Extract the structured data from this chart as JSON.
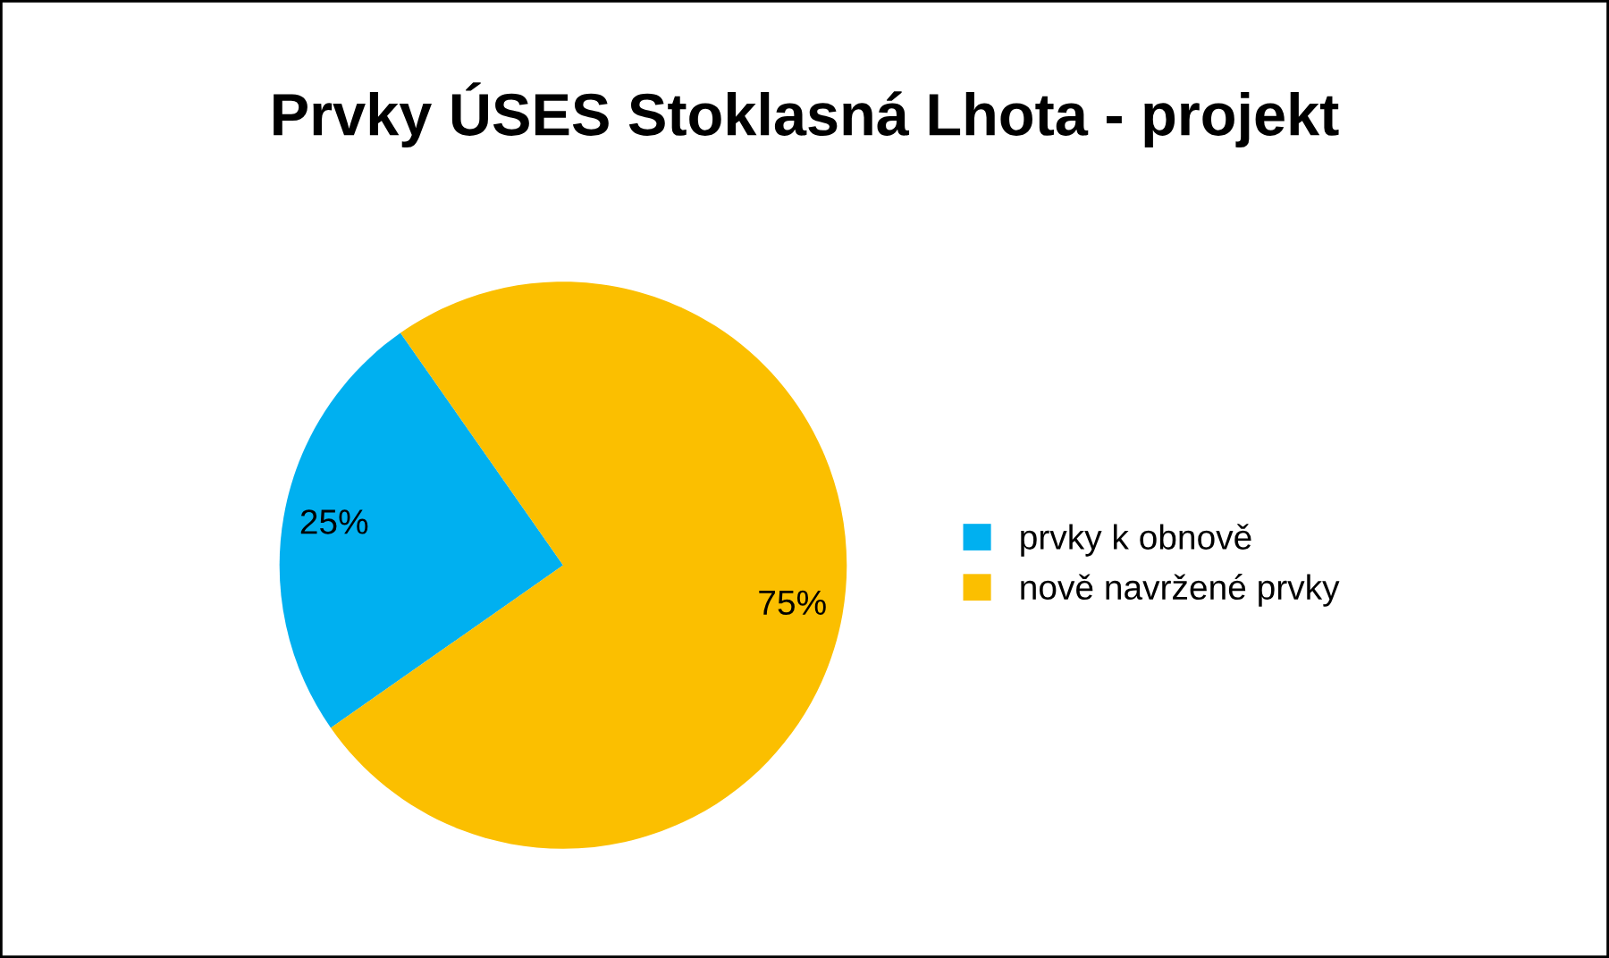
{
  "chart_data": {
    "type": "pie",
    "title": "Prvky ÚSES Stoklasná Lhota - projekt",
    "categories": [
      "prvky k obnově",
      "nově navržené prvky"
    ],
    "values": [
      25,
      75
    ],
    "colors": [
      "#00b0f0",
      "#fbbf00"
    ],
    "value_labels": [
      "25%",
      "75%"
    ],
    "legend": "right"
  }
}
